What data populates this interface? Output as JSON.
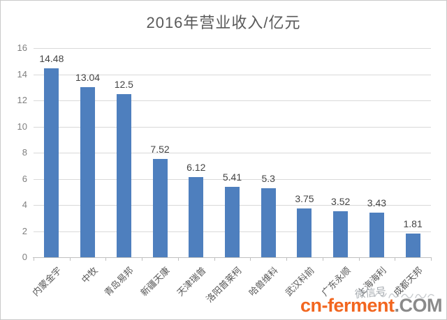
{
  "chart_data": {
    "type": "bar",
    "title": "2016年营业收入/亿元",
    "categories": [
      "内蒙金宇",
      "中牧",
      "青岛易邦",
      "新疆天康",
      "天津瑞普",
      "洛阳普莱柯",
      "哈兽维科",
      "武汉科前",
      "广东永顺",
      "上海海利",
      "成都天邦"
    ],
    "values": [
      14.48,
      13.04,
      12.5,
      7.52,
      6.12,
      5.41,
      5.3,
      3.75,
      3.52,
      3.43,
      1.81
    ],
    "xlabel": "",
    "ylabel": "",
    "ylim": [
      0,
      16
    ],
    "ytick_step": 2,
    "grid": true,
    "legend": false,
    "data_labels": true,
    "bar_color": "#4e7fbe",
    "gridline_color": "#d9d9d9",
    "axis_color": "#bfbfbf"
  },
  "watermark": {
    "site": "cn-ferment",
    "tld": ".COM",
    "wechat_label": "微信号"
  }
}
